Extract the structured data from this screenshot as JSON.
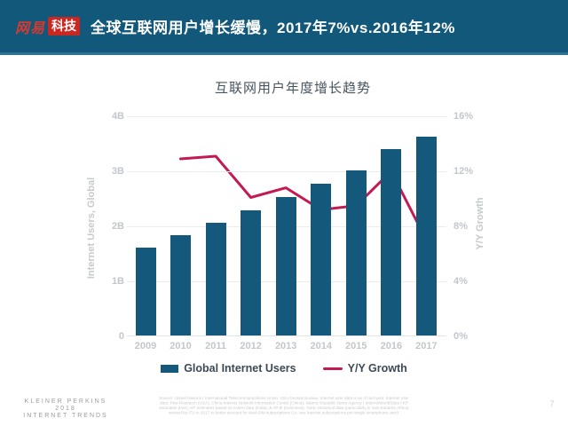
{
  "header": {
    "logo_brand": "网易",
    "logo_badge": "科技",
    "title": "全球互联网用户增长缓慢，2017年7%vs.2016年12%"
  },
  "chart": {
    "title": "互联网用户年度增长趋势"
  },
  "chart_data": {
    "type": "bar",
    "title": "互联网用户年度增长趋势",
    "categories": [
      "2009",
      "2010",
      "2011",
      "2012",
      "2013",
      "2014",
      "2015",
      "2016",
      "2017"
    ],
    "series": [
      {
        "name": "Global Internet Users",
        "type": "bar",
        "axis": "left",
        "unit": "B",
        "color": "#14597b",
        "values": [
          1.6,
          1.82,
          2.05,
          2.27,
          2.52,
          2.76,
          3.0,
          3.38,
          3.62
        ]
      },
      {
        "name": "Y/Y Growth",
        "type": "line",
        "axis": "right",
        "unit": "%",
        "color": "#c41a54",
        "x": [
          "2010",
          "2011",
          "2012",
          "2013",
          "2014",
          "2015",
          "2016",
          "2017"
        ],
        "values": [
          12.9,
          13.1,
          10.1,
          10.8,
          9.2,
          9.5,
          12.0,
          7.0
        ]
      }
    ],
    "left_axis": {
      "label": "Internet Users, Global",
      "ticks": [
        "4B",
        "3B",
        "2B",
        "1B",
        "0"
      ],
      "range": [
        0,
        4
      ]
    },
    "right_axis": {
      "label": "Y/Y Growth",
      "ticks": [
        "16%",
        "12%",
        "8%",
        "4%",
        "0%"
      ],
      "range": [
        0,
        16
      ]
    },
    "grid": true,
    "legend_position": "bottom",
    "legend": [
      {
        "swatch": "bar",
        "label": "Global Internet Users",
        "color": "#14597b"
      },
      {
        "swatch": "line",
        "label": "Y/Y Growth",
        "color": "#c41a54"
      }
    ]
  },
  "footer": {
    "branding_line1": "KLEINER PERKINS",
    "branding_line2": "2018",
    "branding_line3": "INTERNET TRENDS",
    "source_line1": "Source: United Nations / International Telecommunications Union, USA Census Bureau. Internet user data is as of mid-year. Internet user",
    "source_line2": "data: Pew Research (USA), China Internet Network Information Center (China), Islamic Republic News Agency / InternetWorldStats / KP",
    "source_line3": "estimates (Iran), KP estimates based on IAMAI data (India), & APJII (Indonesia). Note: Historical data (particularly in Sub-Saharan Africa)",
    "source_line4": "revised by ITU in 2017 to better account for dual-SIM subscriptions (i.e. two Internet subscriptions per single smartphone user).",
    "page_number": "7"
  },
  "colors": {
    "header_bg": "#12587a",
    "header_border": "#2e7191",
    "bar": "#14597b",
    "line": "#c41a54",
    "logo_red": "#cb2620"
  }
}
